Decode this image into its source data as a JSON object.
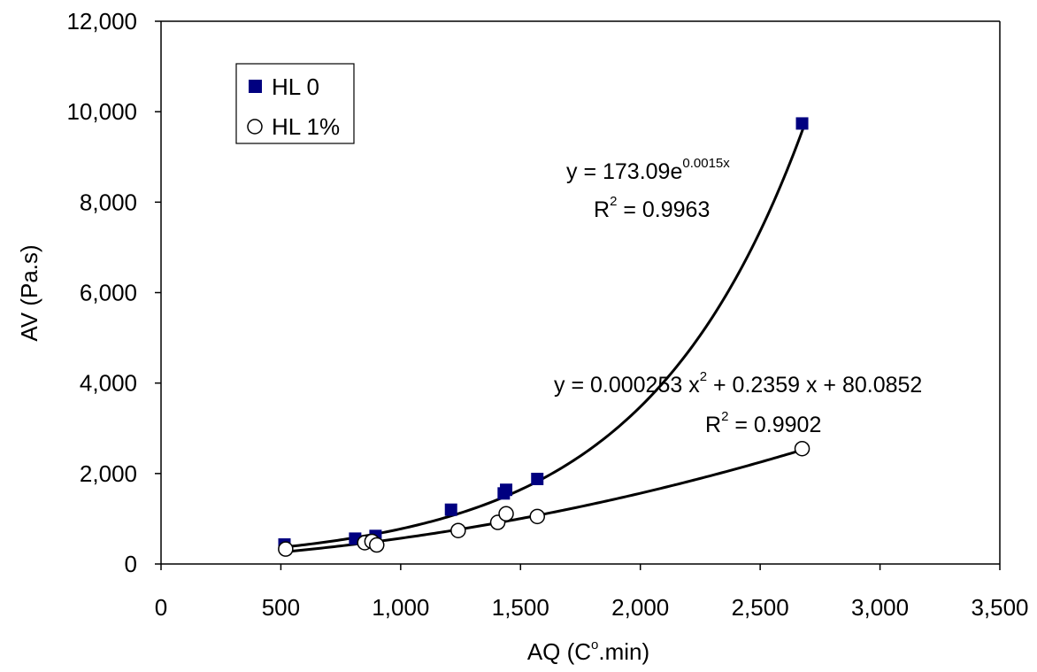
{
  "chart_data": {
    "type": "scatter",
    "xlabel_main": "AQ (C",
    "xlabel_sup": "o",
    "xlabel_end": ".min)",
    "ylabel": "AV (Pa.s)",
    "xlim": [
      0,
      3500
    ],
    "ylim": [
      0,
      12000
    ],
    "x_ticks": [
      0,
      500,
      1000,
      1500,
      2000,
      2500,
      3000,
      3500
    ],
    "x_tick_labels": [
      "0",
      "500",
      "1,000",
      "1,500",
      "2,000",
      "2,500",
      "3,000",
      "3,500"
    ],
    "y_ticks": [
      0,
      2000,
      4000,
      6000,
      8000,
      10000,
      12000
    ],
    "y_tick_labels": [
      "0",
      "2,000",
      "4,000",
      "6,000",
      "8,000",
      "10,000",
      "12,000"
    ],
    "grid": false,
    "legend_position": "top-left",
    "series": [
      {
        "name": "HL 0",
        "marker": "filled-square",
        "color": "#000080",
        "points": [
          {
            "x": 515,
            "y": 430
          },
          {
            "x": 810,
            "y": 560
          },
          {
            "x": 895,
            "y": 620
          },
          {
            "x": 1210,
            "y": 1200
          },
          {
            "x": 1430,
            "y": 1560
          },
          {
            "x": 1440,
            "y": 1640
          },
          {
            "x": 1570,
            "y": 1880
          },
          {
            "x": 2675,
            "y": 9740
          }
        ],
        "trendline": {
          "kind": "exponential",
          "a": 173.09,
          "b": 0.0015,
          "x_range": [
            520,
            2680
          ],
          "eq_prefix": "y = 173.09e",
          "eq_exponent": "0.0015x",
          "r2_prefix": "R",
          "r2_sup": "2",
          "r2_value": " = 0.9963"
        }
      },
      {
        "name": "HL 1%",
        "marker": "open-circle",
        "color": "#000000",
        "points": [
          {
            "x": 520,
            "y": 330
          },
          {
            "x": 850,
            "y": 470
          },
          {
            "x": 880,
            "y": 500
          },
          {
            "x": 900,
            "y": 420
          },
          {
            "x": 1240,
            "y": 740
          },
          {
            "x": 1405,
            "y": 920
          },
          {
            "x": 1440,
            "y": 1110
          },
          {
            "x": 1570,
            "y": 1050
          },
          {
            "x": 2675,
            "y": 2550
          }
        ],
        "trendline": {
          "kind": "polynomial",
          "coefficients": [
            0.000253,
            0.2359,
            80.0852
          ],
          "x_range": [
            520,
            2680
          ],
          "eq_prefix": "y = 0.000253 x",
          "eq_exponent": "2",
          "eq_suffix": " + 0.2359 x + 80.0852",
          "r2_prefix": "R",
          "r2_sup": "2",
          "r2_value": " = 0.9902"
        }
      }
    ]
  }
}
